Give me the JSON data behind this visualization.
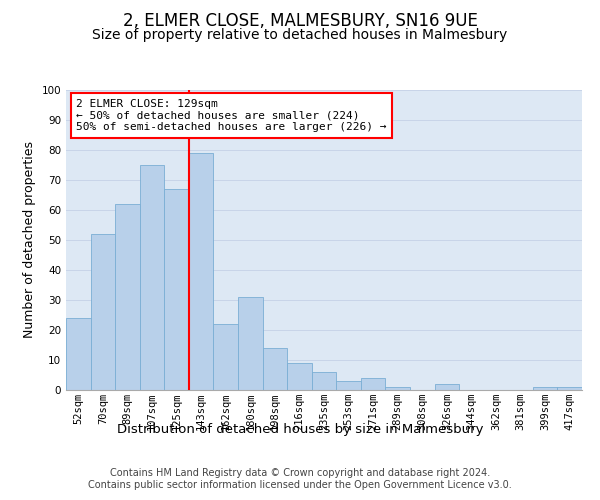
{
  "title": "2, ELMER CLOSE, MALMESBURY, SN16 9UE",
  "subtitle": "Size of property relative to detached houses in Malmesbury",
  "xlabel": "Distribution of detached houses by size in Malmesbury",
  "ylabel": "Number of detached properties",
  "categories": [
    "52sqm",
    "70sqm",
    "89sqm",
    "107sqm",
    "125sqm",
    "143sqm",
    "162sqm",
    "180sqm",
    "198sqm",
    "216sqm",
    "235sqm",
    "253sqm",
    "271sqm",
    "289sqm",
    "308sqm",
    "326sqm",
    "344sqm",
    "362sqm",
    "381sqm",
    "399sqm",
    "417sqm"
  ],
  "values": [
    24,
    52,
    62,
    75,
    67,
    79,
    22,
    31,
    14,
    9,
    6,
    3,
    4,
    1,
    0,
    2,
    0,
    0,
    0,
    1,
    1
  ],
  "bar_color": "#b8d0ea",
  "bar_edge_color": "#7aaed4",
  "vline_color": "red",
  "annotation_text": "2 ELMER CLOSE: 129sqm\n← 50% of detached houses are smaller (224)\n50% of semi-detached houses are larger (226) →",
  "annotation_box_color": "white",
  "annotation_box_edge": "red",
  "ylim": [
    0,
    100
  ],
  "yticks": [
    0,
    10,
    20,
    30,
    40,
    50,
    60,
    70,
    80,
    90,
    100
  ],
  "grid_color": "#c8d4e8",
  "background_color": "#dde8f4",
  "footer": "Contains HM Land Registry data © Crown copyright and database right 2024.\nContains public sector information licensed under the Open Government Licence v3.0.",
  "title_fontsize": 12,
  "subtitle_fontsize": 10,
  "xlabel_fontsize": 9.5,
  "ylabel_fontsize": 9,
  "tick_fontsize": 7.5,
  "footer_fontsize": 7,
  "annot_fontsize": 8
}
